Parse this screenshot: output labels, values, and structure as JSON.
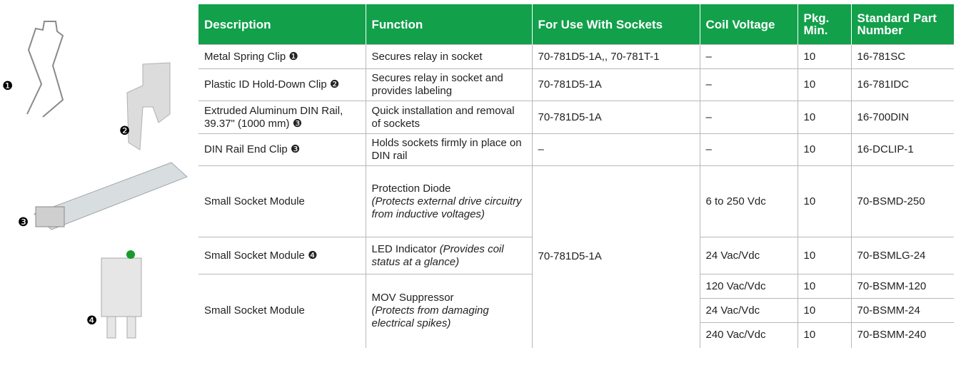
{
  "figure_labels": [
    "❶",
    "❷",
    "❸",
    "❹"
  ],
  "table": {
    "headers": [
      "Description",
      "Function",
      "For Use With Sockets",
      "Coil Voltage",
      "Pkg. Min.",
      "Standard Part Number"
    ],
    "rows": [
      {
        "description": "Metal Spring Clip ❶",
        "function": "Secures relay in socket",
        "sockets": "70-781D5-1A,, 70-781T-1",
        "coil_voltage": "–",
        "pkg_min": 10,
        "part_number": "16-781SC"
      },
      {
        "description": "Plastic ID Hold-Down Clip ❷",
        "function": "Secures relay in socket and provides labeling",
        "sockets": "70-781D5-1A",
        "coil_voltage": "–",
        "pkg_min": 10,
        "part_number": "16-781IDC"
      },
      {
        "description": "Extruded Aluminum DIN Rail, 39.37\" (1000 mm) ❸",
        "function": "Quick installation and removal of sockets",
        "sockets": "70-781D5-1A",
        "coil_voltage": "–",
        "pkg_min": 10,
        "part_number": "16-700DIN"
      },
      {
        "description": "DIN Rail End Clip ❸",
        "function": "Holds sockets firmly in place on DIN rail",
        "sockets": "–",
        "coil_voltage": "–",
        "pkg_min": 10,
        "part_number": "16-DCLIP-1"
      },
      {
        "description": "Small Socket Module",
        "function": "Protection Diode",
        "function_note": "(Protects external drive circuitry from inductive voltages)",
        "sockets": "70-781D5-1A",
        "coil_voltage": "6 to 250 Vdc",
        "pkg_min": 10,
        "part_number": "70-BSMD-250"
      },
      {
        "description": "Small Socket Module ❹",
        "function": "LED Indicator",
        "function_note": "(Provides coil status at a glance)",
        "coil_voltage": "24 Vac/Vdc",
        "pkg_min": 10,
        "part_number": "70-BSMLG-24"
      },
      {
        "description": "Small Socket Module",
        "function": "MOV Suppressor",
        "function_note": "(Protects from damaging electrical spikes)",
        "variants": [
          {
            "coil_voltage": "120 Vac/Vdc",
            "pkg_min": 10,
            "part_number": "70-BSMM-120"
          },
          {
            "coil_voltage": "24 Vac/Vdc",
            "pkg_min": 10,
            "part_number": "70-BSMM-24"
          },
          {
            "coil_voltage": "240 Vac/Vdc",
            "pkg_min": 10,
            "part_number": "70-BSMM-240"
          }
        ]
      }
    ]
  }
}
